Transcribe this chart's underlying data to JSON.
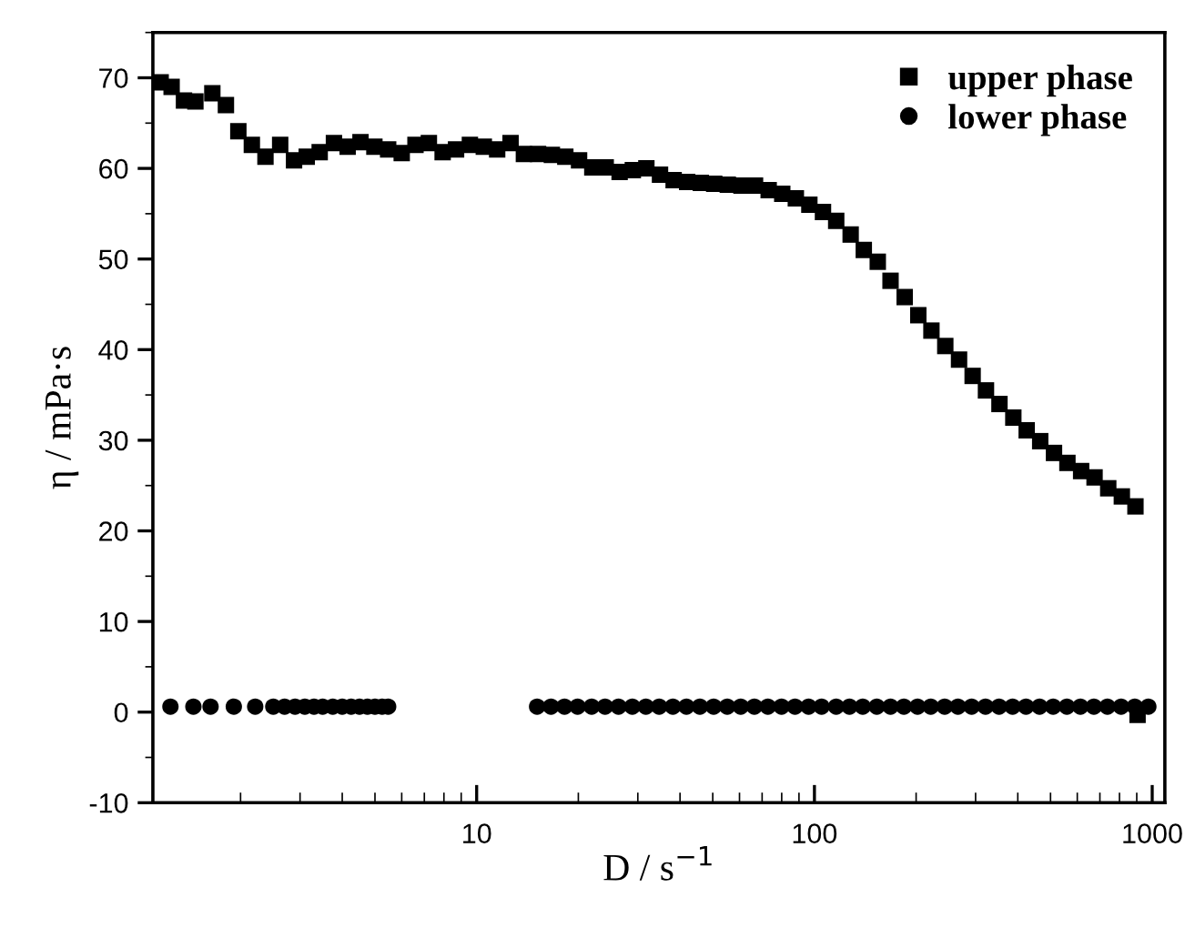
{
  "chart_data": {
    "type": "scatter",
    "xlabel": "D / s$^{−1}$",
    "ylabel": "η / mPa·s",
    "log": "x",
    "xlim": [
      1.1,
      1090
    ],
    "xticks": [
      10,
      100,
      1000
    ],
    "ylim": [
      -10,
      75
    ],
    "yticks": [
      -10,
      0,
      10,
      20,
      30,
      40,
      50,
      60,
      70
    ],
    "grid": false,
    "legend": "top right",
    "series": [
      {
        "name": "upper phase",
        "color": "#000000",
        "marker": "square",
        "x": [
          1.16,
          1.25,
          1.36,
          1.47,
          1.65,
          1.81,
          1.97,
          2.16,
          2.37,
          2.62,
          2.88,
          3.14,
          3.43,
          3.78,
          4.15,
          4.53,
          4.98,
          5.47,
          6.0,
          6.59,
          7.22,
          7.93,
          8.69,
          9.55,
          10.5,
          11.5,
          12.6,
          13.8,
          15.2,
          16.7,
          18.3,
          20.1,
          22.0,
          24.1,
          26.5,
          29.0,
          31.8,
          34.9,
          38.3,
          42.0,
          46.1,
          50.5,
          55.4,
          60.8,
          66.7,
          73.2,
          80.3,
          88.1,
          96.6,
          106,
          116,
          128,
          140,
          154,
          168,
          185,
          203,
          222,
          244,
          268,
          294,
          322,
          353,
          388,
          425,
          466,
          512,
          561,
          616,
          675,
          741,
          813,
          892,
          905
        ],
        "values": [
          69.5,
          69.0,
          67.5,
          67.4,
          68.3,
          67.0,
          64.1,
          62.6,
          61.3,
          62.6,
          60.9,
          61.3,
          61.8,
          62.8,
          62.4,
          62.9,
          62.4,
          62.1,
          61.7,
          62.6,
          62.8,
          61.8,
          62.1,
          62.6,
          62.4,
          62.1,
          62.8,
          61.6,
          61.6,
          61.5,
          61.3,
          60.9,
          60.1,
          60.1,
          59.6,
          59.8,
          60.0,
          59.3,
          58.7,
          58.5,
          58.4,
          58.3,
          58.2,
          58.1,
          58.1,
          57.6,
          57.2,
          56.7,
          56.0,
          55.2,
          54.2,
          52.7,
          51.0,
          49.7,
          47.6,
          45.8,
          43.8,
          42.1,
          40.4,
          38.9,
          37.1,
          35.5,
          34.0,
          32.5,
          31.1,
          29.9,
          28.6,
          27.5,
          26.6,
          25.9,
          24.7,
          23.8,
          22.7,
          -0.3
        ]
      },
      {
        "name": "lower phase",
        "color": "#000000",
        "marker": "circle",
        "x": [
          1.24,
          1.45,
          1.63,
          1.91,
          2.21,
          2.5,
          2.7,
          2.9,
          3.1,
          3.3,
          3.5,
          3.75,
          4.0,
          4.25,
          4.5,
          4.75,
          5.0,
          5.25,
          5.47,
          15.1,
          16.6,
          18.2,
          19.9,
          21.9,
          24.0,
          26.3,
          28.9,
          31.7,
          34.7,
          38.1,
          41.8,
          45.8,
          50.3,
          55.2,
          60.5,
          66.4,
          72.8,
          79.9,
          87.6,
          96.1,
          105,
          116,
          127,
          139,
          153,
          168,
          184,
          202,
          221,
          243,
          266,
          292,
          321,
          352,
          386,
          423,
          464,
          509,
          559,
          613,
          672,
          737,
          809,
          888,
          974
        ],
        "values": [
          0.6,
          0.6,
          0.6,
          0.6,
          0.6,
          0.6,
          0.6,
          0.6,
          0.6,
          0.6,
          0.6,
          0.6,
          0.6,
          0.6,
          0.6,
          0.6,
          0.6,
          0.6,
          0.6,
          0.6,
          0.6,
          0.6,
          0.6,
          0.6,
          0.6,
          0.6,
          0.6,
          0.6,
          0.6,
          0.6,
          0.6,
          0.6,
          0.6,
          0.6,
          0.6,
          0.6,
          0.6,
          0.6,
          0.6,
          0.6,
          0.6,
          0.6,
          0.6,
          0.6,
          0.6,
          0.6,
          0.6,
          0.6,
          0.6,
          0.6,
          0.6,
          0.6,
          0.6,
          0.6,
          0.6,
          0.6,
          0.6,
          0.6,
          0.6,
          0.6,
          0.6,
          0.6,
          0.6,
          0.6,
          0.6
        ]
      }
    ]
  }
}
